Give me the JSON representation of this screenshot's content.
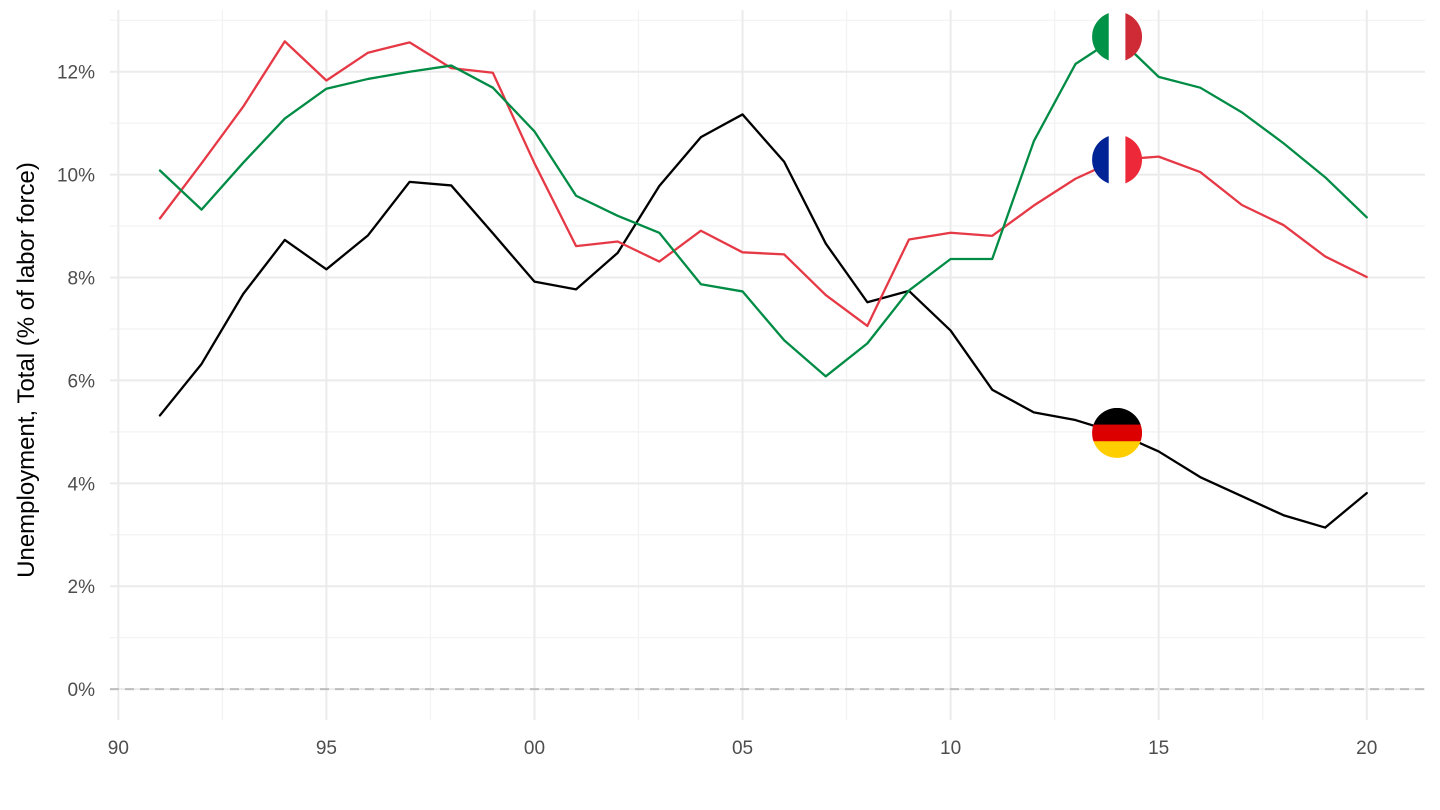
{
  "chart_data": {
    "type": "line",
    "ylabel": "Unemployment, Total (% of labor force)",
    "xlabel": "",
    "title": "",
    "x_ticks": [
      1990,
      1995,
      2000,
      2005,
      2010,
      2015,
      2020
    ],
    "x_tick_labels": [
      "90",
      "95",
      "00",
      "05",
      "10",
      "15",
      "20"
    ],
    "xlim": [
      1989.8,
      2021.4
    ],
    "y_ticks": [
      0,
      2,
      4,
      6,
      8,
      10,
      12
    ],
    "y_tick_labels": [
      "0%",
      "2%",
      "4%",
      "6%",
      "8%",
      "10%",
      "12%"
    ],
    "ylim": [
      -0.6,
      13.2
    ],
    "grid": true,
    "legend": "none (country flags placed on lines at 2014)",
    "x": [
      1991,
      1992,
      1993,
      1994,
      1995,
      1996,
      1997,
      1998,
      1999,
      2000,
      2001,
      2002,
      2003,
      2004,
      2005,
      2006,
      2007,
      2008,
      2009,
      2010,
      2011,
      2012,
      2013,
      2014,
      2015,
      2016,
      2017,
      2018,
      2019,
      2020
    ],
    "series": [
      {
        "flag": "germany-flag-icon",
        "color": "#000000",
        "values": [
          5.32,
          6.32,
          7.68,
          8.73,
          8.16,
          8.82,
          9.86,
          9.79,
          8.86,
          7.92,
          7.77,
          8.48,
          9.78,
          10.73,
          11.17,
          10.25,
          8.66,
          7.52,
          7.74,
          6.97,
          5.82,
          5.38,
          5.23,
          4.98,
          4.62,
          4.12,
          3.75,
          3.38,
          3.14,
          3.81
        ]
      },
      {
        "flag": "france-flag-icon",
        "color": "#e63946",
        "values": [
          9.15,
          10.22,
          11.32,
          12.59,
          11.83,
          12.37,
          12.57,
          12.07,
          11.98,
          10.22,
          8.61,
          8.7,
          8.31,
          8.91,
          8.49,
          8.45,
          7.66,
          7.06,
          8.74,
          8.87,
          8.81,
          9.4,
          9.92,
          10.29,
          10.35,
          10.05,
          9.41,
          9.02,
          8.41,
          8.01
        ]
      },
      {
        "flag": "italy-flag-icon",
        "color": "#008c45",
        "values": [
          10.08,
          9.32,
          10.23,
          11.09,
          11.67,
          11.86,
          12.0,
          12.12,
          11.69,
          10.84,
          9.59,
          9.2,
          8.87,
          7.87,
          7.73,
          6.78,
          6.08,
          6.72,
          7.75,
          8.36,
          8.36,
          10.65,
          12.15,
          12.68,
          11.9,
          11.69,
          11.21,
          10.61,
          9.95,
          9.17
        ]
      }
    ],
    "flag_year": 2014,
    "colors": {
      "germany": [
        "#000000",
        "#dd0000",
        "#ffce00"
      ],
      "france": [
        "#002395",
        "#ffffff",
        "#ed2939"
      ],
      "italy": [
        "#009246",
        "#ffffff",
        "#ce2b37"
      ]
    }
  }
}
